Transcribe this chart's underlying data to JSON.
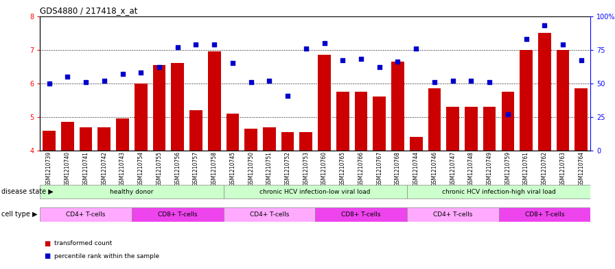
{
  "title": "GDS4880 / 217418_x_at",
  "samples": [
    "GSM1210739",
    "GSM1210740",
    "GSM1210741",
    "GSM1210742",
    "GSM1210743",
    "GSM1210754",
    "GSM1210755",
    "GSM1210756",
    "GSM1210757",
    "GSM1210758",
    "GSM1210745",
    "GSM1210750",
    "GSM1210751",
    "GSM1210752",
    "GSM1210753",
    "GSM1210760",
    "GSM1210765",
    "GSM1210766",
    "GSM1210767",
    "GSM1210768",
    "GSM1210744",
    "GSM1210746",
    "GSM1210747",
    "GSM1210748",
    "GSM1210749",
    "GSM1210759",
    "GSM1210761",
    "GSM1210762",
    "GSM1210763",
    "GSM1210764"
  ],
  "bar_values": [
    4.6,
    4.85,
    4.7,
    4.7,
    4.95,
    6.0,
    6.55,
    6.6,
    5.2,
    6.95,
    5.1,
    4.65,
    4.7,
    4.55,
    4.55,
    6.85,
    5.75,
    5.75,
    5.6,
    6.65,
    4.4,
    5.85,
    5.3,
    5.3,
    5.3,
    5.75,
    7.0,
    7.5,
    7.0,
    5.85
  ],
  "dot_values_pct": [
    50,
    55,
    51,
    52,
    57,
    58,
    62,
    77,
    79,
    79,
    65,
    51,
    52,
    41,
    76,
    80,
    67,
    68,
    62,
    66,
    76,
    51,
    52,
    52,
    51,
    27,
    83,
    93,
    79,
    67
  ],
  "ylim": [
    4.0,
    8.0
  ],
  "yticks": [
    4,
    5,
    6,
    7,
    8
  ],
  "ytick_dotted": [
    5,
    6,
    7
  ],
  "right_yticks": [
    0,
    25,
    50,
    75,
    100
  ],
  "right_yticklabels": [
    "0",
    "25",
    "50",
    "75",
    "100%"
  ],
  "bar_color": "#cc0000",
  "dot_color": "#0000cc",
  "bg_color": "#ffffff",
  "legend_bar_label": "transformed count",
  "legend_dot_label": "percentile rank within the sample",
  "disease_state_label": "disease state",
  "cell_type_label": "cell type",
  "ds_groups": [
    {
      "label": "healthy donor",
      "start": 0,
      "end": 9
    },
    {
      "label": "chronic HCV infection-low viral load",
      "start": 10,
      "end": 19
    },
    {
      "label": "chronic HCV infection-high viral load",
      "start": 20,
      "end": 29
    }
  ],
  "ct_groups": [
    {
      "label": "CD4+ T-cells",
      "start": 0,
      "end": 4,
      "color": "#ffaaff"
    },
    {
      "label": "CD8+ T-cells",
      "start": 5,
      "end": 9,
      "color": "#ee44ee"
    },
    {
      "label": "CD4+ T-cells",
      "start": 10,
      "end": 14,
      "color": "#ffaaff"
    },
    {
      "label": "CD8+ T-cells",
      "start": 15,
      "end": 19,
      "color": "#ee44ee"
    },
    {
      "label": "CD4+ T-cells",
      "start": 20,
      "end": 24,
      "color": "#ffaaff"
    },
    {
      "label": "CD8+ T-cells",
      "start": 25,
      "end": 29,
      "color": "#ee44ee"
    }
  ]
}
